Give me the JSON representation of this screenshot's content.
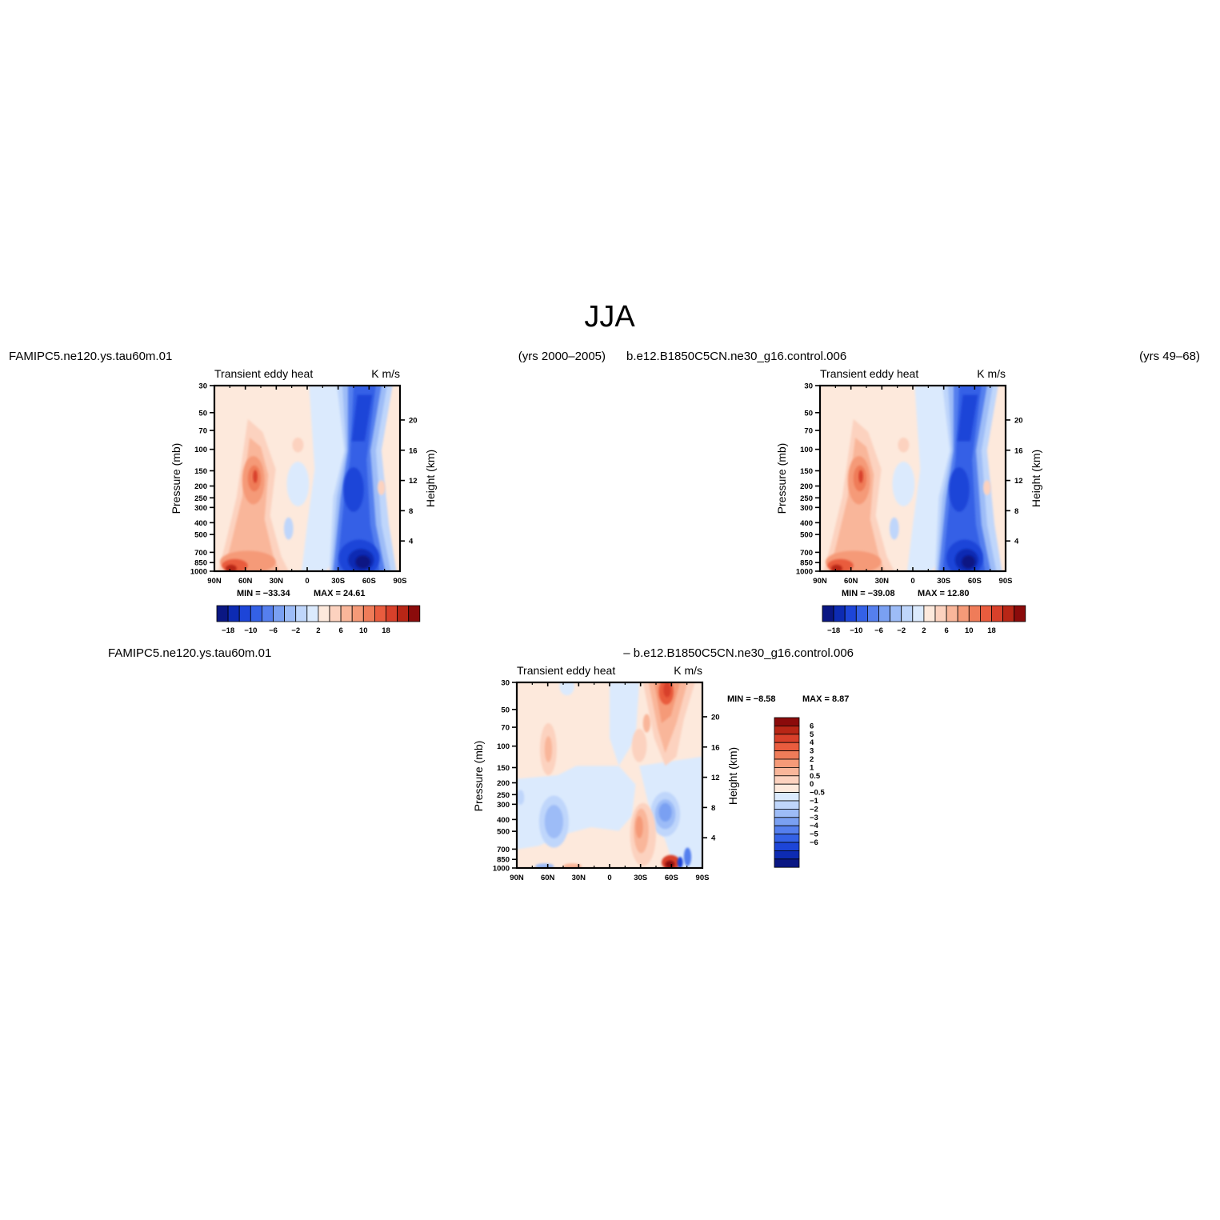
{
  "title": "JJA",
  "colors": {
    "red_palette": [
      "#fde9dc",
      "#fcd2bf",
      "#f9b69a",
      "#f59a78",
      "#ef7c59",
      "#e95c3e",
      "#d8402a",
      "#b82616",
      "#8b0b0b"
    ],
    "blue_palette": [
      "#dbeafd",
      "#bfd6fb",
      "#9dbcf7",
      "#7aa0f2",
      "#557fee",
      "#3461e6",
      "#1d45d8",
      "#0d2bb3",
      "#0a1783"
    ],
    "background": "#ffffff"
  },
  "panels": [
    {
      "case_label": "FAMIPC5.ne120.ys.tau60m.01",
      "years_label": "(yrs 2000–2005)",
      "left_string": "Transient  eddy  heat",
      "right_string": "K  m/s",
      "ylabel": "Pressure  (mb)",
      "ylabel_right": "Height  (km)",
      "min_label": "MIN  =  −33.34",
      "max_label": "MAX  =   24.61"
    },
    {
      "case_label": "b.e12.B1850C5CN.ne30_g16.control.006",
      "years_label": "(yrs 49–68)",
      "left_string": "Transient  eddy  heat",
      "right_string": "K  m/s",
      "ylabel": "Pressure  (mb)",
      "ylabel_right": "Height  (km)",
      "min_label": "MIN  =  −39.08",
      "max_label": "MAX  =   12.80"
    },
    {
      "case_label": "FAMIPC5.ne120.ys.tau60m.01",
      "case_label_right": "–  b.e12.B1850C5CN.ne30_g16.control.006",
      "left_string": "Transient  eddy  heat",
      "right_string": "K  m/s",
      "ylabel": "Pressure  (mb)",
      "ylabel_right": "Height  (km)",
      "min_label": "MIN  =   −8.58",
      "max_label": "MAX  =    8.87"
    }
  ],
  "chart_data": [
    {
      "type": "heatmap",
      "x_ticks": [
        "90N",
        "60N",
        "30N",
        "0",
        "30S",
        "60S",
        "90S"
      ],
      "x": [
        90,
        60,
        30,
        0,
        -30,
        -60,
        -90
      ],
      "y_ticks": [
        "30",
        "50",
        "70",
        "100",
        "150",
        "200",
        "250",
        "300",
        "400",
        "500",
        "700",
        "850",
        "1000"
      ],
      "y": [
        30,
        50,
        70,
        100,
        150,
        200,
        250,
        300,
        400,
        500,
        700,
        850,
        1000
      ],
      "y_right_ticks": [
        "20",
        "16",
        "12",
        "8",
        "4"
      ],
      "y_right": [
        20,
        16,
        12,
        8,
        4
      ],
      "colorbar_labels": [
        "−18",
        "−10",
        "−6",
        "−2",
        "2",
        "6",
        "10",
        "18"
      ],
      "min": -33.34,
      "max": 24.61
    },
    {
      "type": "heatmap",
      "x_ticks": [
        "90N",
        "60N",
        "30N",
        "0",
        "30S",
        "60S",
        "90S"
      ],
      "x": [
        90,
        60,
        30,
        0,
        -30,
        -60,
        -90
      ],
      "y_ticks": [
        "30",
        "50",
        "70",
        "100",
        "150",
        "200",
        "250",
        "300",
        "400",
        "500",
        "700",
        "850",
        "1000"
      ],
      "y": [
        30,
        50,
        70,
        100,
        150,
        200,
        250,
        300,
        400,
        500,
        700,
        850,
        1000
      ],
      "y_right_ticks": [
        "20",
        "16",
        "12",
        "8",
        "4"
      ],
      "y_right": [
        20,
        16,
        12,
        8,
        4
      ],
      "colorbar_labels": [
        "−18",
        "−10",
        "−6",
        "−2",
        "2",
        "6",
        "10",
        "18"
      ],
      "min": -39.08,
      "max": 12.8
    },
    {
      "type": "heatmap",
      "x_ticks": [
        "90N",
        "60N",
        "30N",
        "0",
        "30S",
        "60S",
        "90S"
      ],
      "x": [
        90,
        60,
        30,
        0,
        -30,
        -60,
        -90
      ],
      "y_ticks": [
        "30",
        "50",
        "70",
        "100",
        "150",
        "200",
        "250",
        "300",
        "400",
        "500",
        "700",
        "850",
        "1000"
      ],
      "y": [
        30,
        50,
        70,
        100,
        150,
        200,
        250,
        300,
        400,
        500,
        700,
        850,
        1000
      ],
      "y_right_ticks": [
        "20",
        "16",
        "12",
        "8",
        "4"
      ],
      "y_right": [
        20,
        16,
        12,
        8,
        4
      ],
      "colorbar_labels": [
        "6",
        "5",
        "4",
        "3",
        "2",
        "1",
        "0.5",
        "0",
        "−0.5",
        "−1",
        "−2",
        "−3",
        "−4",
        "−5",
        "−6"
      ],
      "min": -8.58,
      "max": 8.87
    }
  ]
}
